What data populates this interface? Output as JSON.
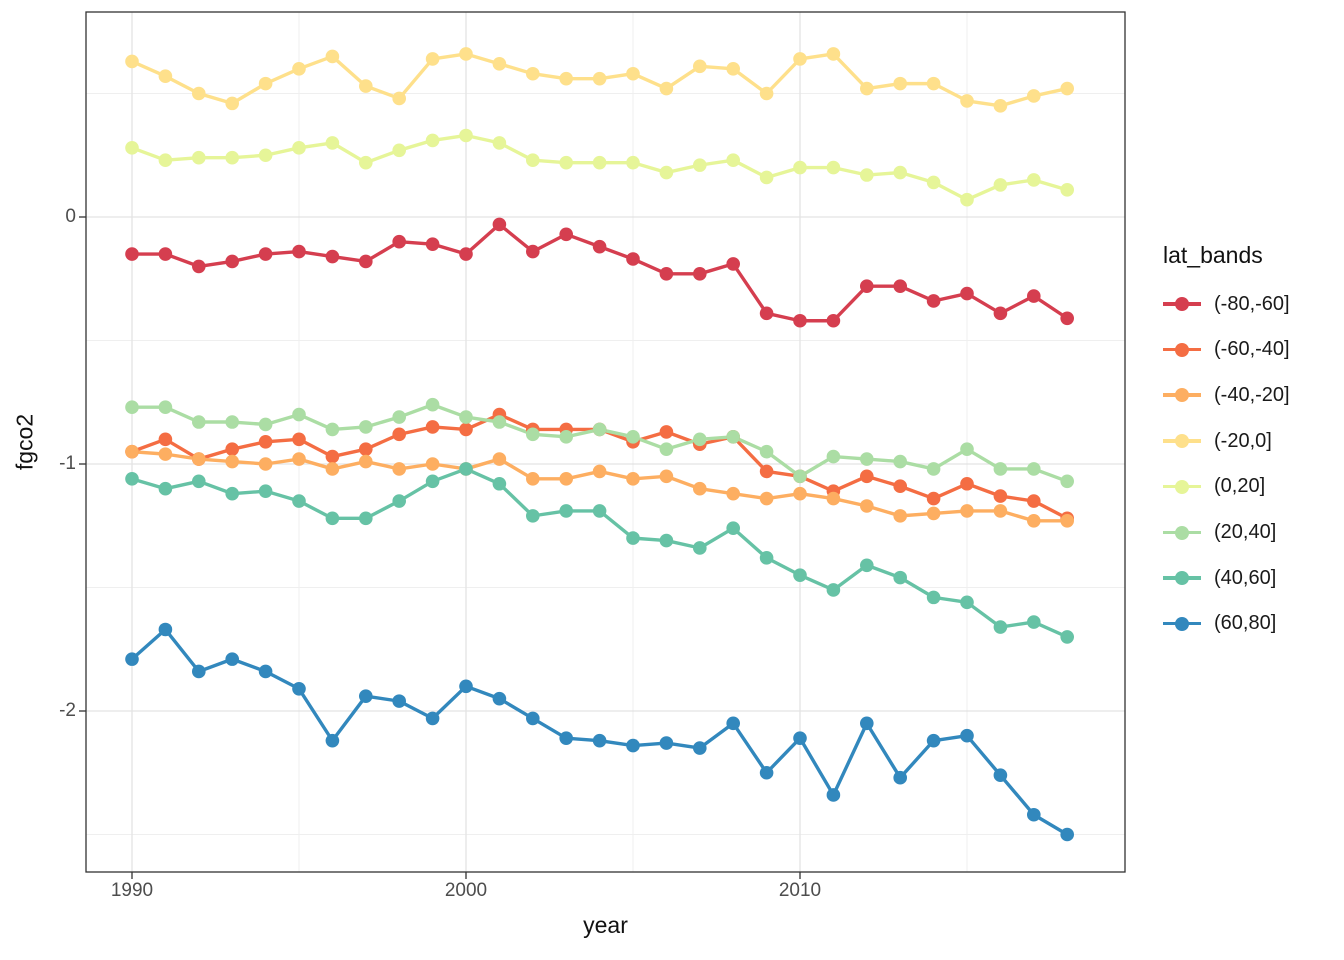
{
  "chart_data": {
    "type": "line",
    "title": "",
    "xlabel": "year",
    "ylabel": "fgco2",
    "legend_title": "lat_bands",
    "legend_position": "right",
    "grid": true,
    "x_axis": {
      "ticks": [
        1990,
        2000,
        2010
      ],
      "tick_labels": [
        "1990",
        "2000",
        "2010"
      ],
      "minor_ticks": [
        1995,
        2005,
        2015
      ],
      "range": [
        1988.6,
        2019.7
      ]
    },
    "y_axis": {
      "ticks": [
        0,
        -1,
        -2
      ],
      "tick_labels": [
        "0",
        "-1",
        "-2"
      ],
      "minor_ticks": [
        0.5,
        -0.5,
        -1.5,
        -2.5
      ],
      "range": [
        0.83,
        -2.65
      ]
    },
    "x": [
      1990,
      1991,
      1992,
      1993,
      1994,
      1995,
      1996,
      1997,
      1998,
      1999,
      2000,
      2001,
      2002,
      2003,
      2004,
      2005,
      2006,
      2007,
      2008,
      2009,
      2010,
      2011,
      2012,
      2013,
      2014,
      2015,
      2016,
      2017,
      2018
    ],
    "series": [
      {
        "name": "(-80,-60]",
        "color": "#d53e4f",
        "values": [
          -0.15,
          -0.15,
          -0.2,
          -0.18,
          -0.15,
          -0.14,
          -0.16,
          -0.18,
          -0.1,
          -0.11,
          -0.15,
          -0.03,
          -0.14,
          -0.07,
          -0.12,
          -0.17,
          -0.23,
          -0.23,
          -0.19,
          -0.39,
          -0.42,
          -0.42,
          -0.28,
          -0.28,
          -0.34,
          -0.31,
          -0.39,
          -0.32,
          -0.41
        ]
      },
      {
        "name": "(-60,-40]",
        "color": "#f46d43",
        "values": [
          -0.95,
          -0.9,
          -0.98,
          -0.94,
          -0.91,
          -0.9,
          -0.97,
          -0.94,
          -0.88,
          -0.85,
          -0.86,
          -0.8,
          -0.86,
          -0.86,
          -0.86,
          -0.91,
          -0.87,
          -0.92,
          -0.89,
          -1.03,
          -1.05,
          -1.11,
          -1.05,
          -1.09,
          -1.14,
          -1.08,
          -1.13,
          -1.15,
          -1.22
        ]
      },
      {
        "name": "(-40,-20]",
        "color": "#fdae61",
        "values": [
          -0.95,
          -0.96,
          -0.98,
          -0.99,
          -1.0,
          -0.98,
          -1.02,
          -0.99,
          -1.02,
          -1.0,
          -1.02,
          -0.98,
          -1.06,
          -1.06,
          -1.03,
          -1.06,
          -1.05,
          -1.1,
          -1.12,
          -1.14,
          -1.12,
          -1.14,
          -1.17,
          -1.21,
          -1.2,
          -1.19,
          -1.19,
          -1.23,
          -1.23
        ]
      },
      {
        "name": "(-20,0]",
        "color": "#fee08b",
        "values": [
          0.63,
          0.57,
          0.5,
          0.46,
          0.54,
          0.6,
          0.65,
          0.53,
          0.48,
          0.64,
          0.66,
          0.62,
          0.58,
          0.56,
          0.56,
          0.58,
          0.52,
          0.61,
          0.6,
          0.5,
          0.64,
          0.66,
          0.52,
          0.54,
          0.54,
          0.47,
          0.45,
          0.49,
          0.52
        ]
      },
      {
        "name": "(0,20]",
        "color": "#e6f598",
        "values": [
          0.28,
          0.23,
          0.24,
          0.24,
          0.25,
          0.28,
          0.3,
          0.22,
          0.27,
          0.31,
          0.33,
          0.3,
          0.23,
          0.22,
          0.22,
          0.22,
          0.18,
          0.21,
          0.23,
          0.16,
          0.2,
          0.2,
          0.17,
          0.18,
          0.14,
          0.07,
          0.13,
          0.15,
          0.11
        ]
      },
      {
        "name": "(20,40]",
        "color": "#abdda4",
        "values": [
          -0.77,
          -0.77,
          -0.83,
          -0.83,
          -0.84,
          -0.8,
          -0.86,
          -0.85,
          -0.81,
          -0.76,
          -0.81,
          -0.83,
          -0.88,
          -0.89,
          -0.86,
          -0.89,
          -0.94,
          -0.9,
          -0.89,
          -0.95,
          -1.05,
          -0.97,
          -0.98,
          -0.99,
          -1.02,
          -0.94,
          -1.02,
          -1.02,
          -1.07
        ]
      },
      {
        "name": "(40,60]",
        "color": "#66c2a5",
        "values": [
          -1.06,
          -1.1,
          -1.07,
          -1.12,
          -1.11,
          -1.15,
          -1.22,
          -1.22,
          -1.15,
          -1.07,
          -1.02,
          -1.08,
          -1.21,
          -1.19,
          -1.19,
          -1.3,
          -1.31,
          -1.34,
          -1.26,
          -1.38,
          -1.45,
          -1.51,
          -1.41,
          -1.46,
          -1.54,
          -1.56,
          -1.66,
          -1.64,
          -1.7
        ]
      },
      {
        "name": "(60,80]",
        "color": "#3288bd",
        "values": [
          -1.79,
          -1.67,
          -1.84,
          -1.79,
          -1.84,
          -1.91,
          -2.12,
          -1.94,
          -1.96,
          -2.03,
          -1.9,
          -1.95,
          -2.03,
          -2.11,
          -2.12,
          -2.14,
          -2.13,
          -2.15,
          -2.05,
          -2.25,
          -2.11,
          -2.34,
          -2.05,
          -2.27,
          -2.12,
          -2.1,
          -2.26,
          -2.42,
          -2.5
        ]
      }
    ],
    "style": {
      "panel_border_color": "#333333",
      "major_grid_color": "#e3e3e3",
      "minor_grid_color": "#efefef",
      "tick_mark_color": "#333333",
      "tick_label_color": "#4d4d4d",
      "axis_title_color": "#111111"
    }
  }
}
